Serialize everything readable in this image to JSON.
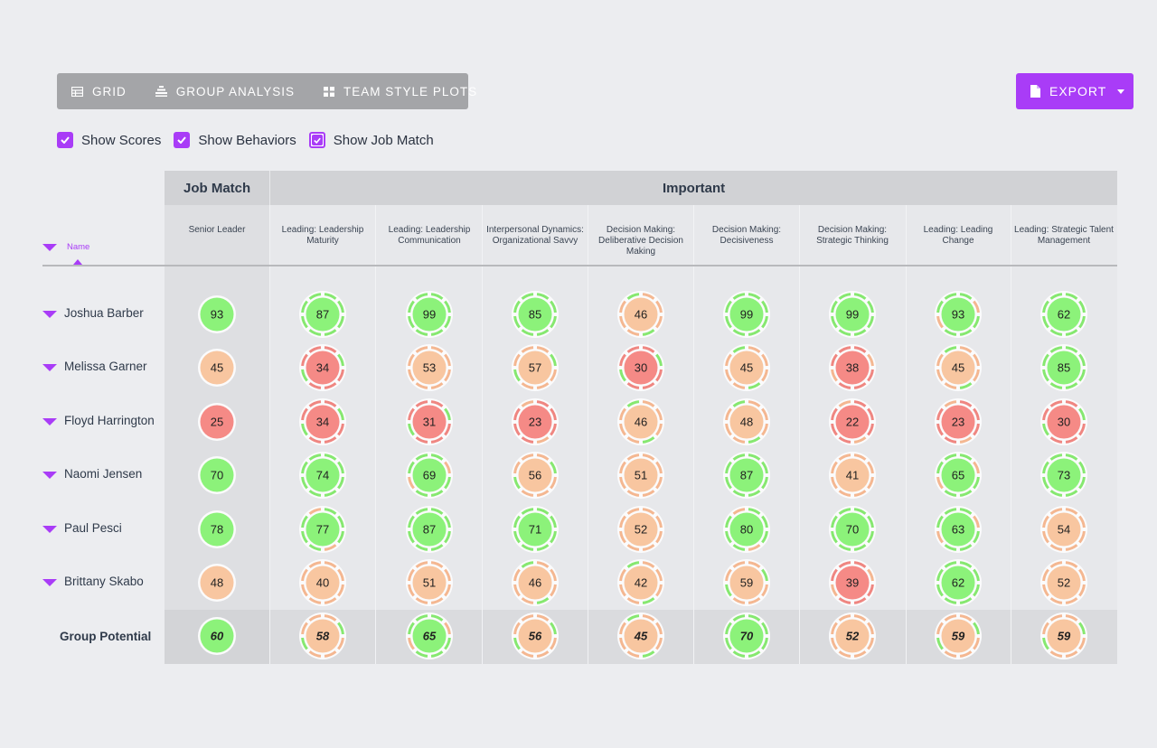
{
  "toolbar": {
    "tabs": [
      {
        "label": "GRID",
        "icon": "table-icon"
      },
      {
        "label": "GROUP ANALYSIS",
        "icon": "group-analysis-icon"
      },
      {
        "label": "TEAM STYLE PLOTS",
        "icon": "grid-icon"
      }
    ],
    "export_label": "EXPORT"
  },
  "options": [
    {
      "label": "Show Scores",
      "checked": true
    },
    {
      "label": "Show Behaviors",
      "checked": true
    },
    {
      "label": "Show Job Match",
      "checked": true
    }
  ],
  "table": {
    "group_headers": {
      "job_match": "Job Match",
      "important": "Important"
    },
    "name_header": "Name",
    "columns": [
      "Senior Leader",
      "Leading: Leadership Maturity",
      "Leading: Leadership Communication",
      "Interpersonal Dynamics: Organizational Savvy",
      "Decision Making: Deliberative Decision Making",
      "Decision Making: Decisiveness",
      "Decision Making: Strategic Thinking",
      "Leading: Leading Change",
      "Leading: Strategic Talent Management"
    ],
    "rows": [
      {
        "name": "Joshua Barber",
        "scores": [
          93,
          87,
          99,
          85,
          46,
          99,
          99,
          93,
          62
        ]
      },
      {
        "name": "Melissa Garner",
        "scores": [
          45,
          34,
          53,
          57,
          30,
          45,
          38,
          45,
          85
        ]
      },
      {
        "name": "Floyd Harrington",
        "scores": [
          25,
          34,
          31,
          23,
          46,
          48,
          22,
          23,
          30
        ]
      },
      {
        "name": "Naomi Jensen",
        "scores": [
          70,
          74,
          69,
          56,
          51,
          87,
          41,
          65,
          73
        ]
      },
      {
        "name": "Paul Pesci",
        "scores": [
          78,
          77,
          87,
          71,
          52,
          80,
          70,
          63,
          54
        ]
      },
      {
        "name": "Brittany Skabo",
        "scores": [
          48,
          40,
          51,
          46,
          42,
          59,
          39,
          62,
          52
        ]
      }
    ],
    "group_potential": {
      "label": "Group Potential",
      "scores": [
        60,
        58,
        65,
        56,
        45,
        70,
        52,
        59,
        59
      ]
    }
  },
  "colors": {
    "accent": "#a93cf7",
    "high": "#8cf27a",
    "mid": "#f8c6a0",
    "low": "#f58a86",
    "ring_green": "#86e870",
    "ring_orange": "#f4b791",
    "ring_red": "#ef8681"
  }
}
